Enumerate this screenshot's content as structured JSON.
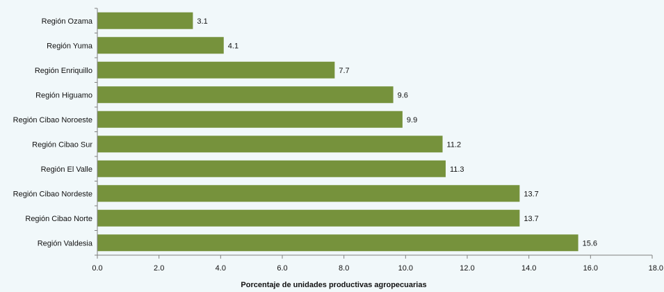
{
  "chart_data": {
    "type": "bar",
    "orientation": "horizontal",
    "title": "",
    "xlabel": "Porcentaje de unidades productivas agropecuarias",
    "ylabel": "",
    "categories": [
      "Región Ozama",
      "Región Yuma",
      "Región Enriquillo",
      "Región Higuamo",
      "Región Cibao Noroeste",
      "Región Cibao Sur",
      "Región El Valle",
      "Región Cibao Nordeste",
      "Región Cibao Norte",
      "Región Valdesia"
    ],
    "values": [
      3.1,
      4.1,
      7.7,
      9.6,
      9.9,
      11.2,
      11.3,
      13.7,
      13.7,
      15.6
    ],
    "value_labels": [
      "3.1",
      "4.1",
      "7.7",
      "9.6",
      "9.9",
      "11.2",
      "11.3",
      "13.7",
      "13.7",
      "15.6"
    ],
    "xlim": [
      0,
      18
    ],
    "x_ticks": [
      "0.0",
      "2.0",
      "4.0",
      "6.0",
      "8.0",
      "10.0",
      "12.0",
      "14.0",
      "16.0",
      "18.0"
    ],
    "grid": false,
    "legend": "none",
    "bar_color": "#76923c"
  }
}
